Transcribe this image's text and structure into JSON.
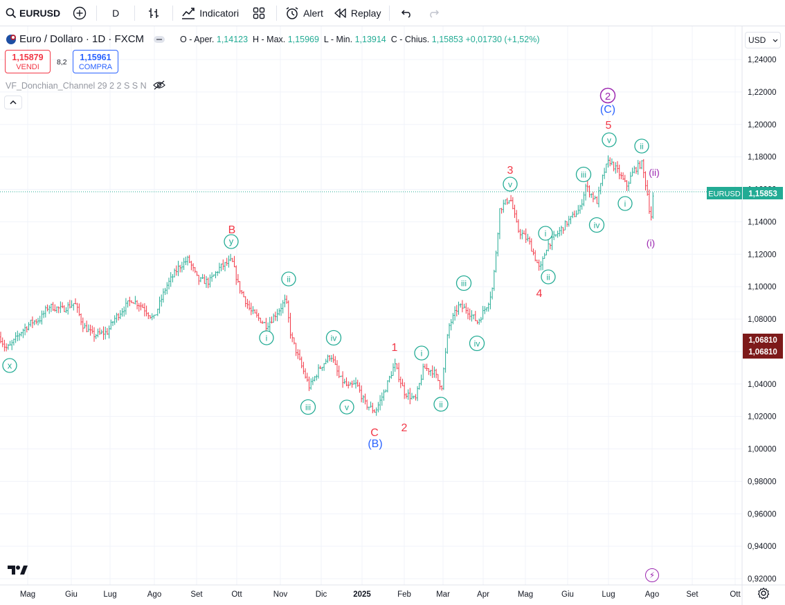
{
  "toolbar": {
    "symbol": "EURUSD",
    "timeframe": "D",
    "indicators_label": "Indicatori",
    "alert_label": "Alert",
    "replay_label": "Replay"
  },
  "legend": {
    "title": "Euro / Dollaro · 1D · FXCM",
    "open_label": "O - Aper.",
    "open": "1,14123",
    "high_label": "H - Max.",
    "high": "1,15969",
    "low_label": "L - Min.",
    "low": "1,13914",
    "close_label": "C - Chius.",
    "close": "1,15853",
    "change": "+0,01730 (+1,52%)"
  },
  "trade": {
    "sell_price": "1,15879",
    "sell_label": "VENDI",
    "spread": "8,2",
    "buy_price": "1,15961",
    "buy_label": "COMPRA"
  },
  "indicator": {
    "label": "VF_Donchian_Channel 29 2 2 S S N"
  },
  "currency": "USD",
  "price_axis": {
    "ticks": [
      "1,24000",
      "1,22000",
      "1,20000",
      "1,18000",
      "1,16000",
      "1,14000",
      "1,12000",
      "1,10000",
      "1,08000",
      "1,06000",
      "1,04000",
      "1,02000",
      "1,00000",
      "0,98000",
      "0,96000",
      "0,94000",
      "0,92000"
    ],
    "last_label": "EURUSD",
    "last_value": "1,15853",
    "crosshair_1": "1,06810",
    "crosshair_2": "1,06810"
  },
  "time_axis": [
    "Mag",
    "Giu",
    "Lug",
    "Ago",
    "Set",
    "Ott",
    "Nov",
    "Dic",
    "2025",
    "Feb",
    "Mar",
    "Apr",
    "Mag",
    "Giu",
    "Lug",
    "Ago",
    "Set",
    "Ott"
  ],
  "colors": {
    "up": "#22ab94",
    "down": "#f23645",
    "purple": "#9c27b0",
    "blue": "#2962ff",
    "wave": "#22ab94",
    "red_label": "#f23645"
  },
  "wave_labels": {
    "x": "x",
    "y": "y",
    "B": "B",
    "i1": "i",
    "ii1": "ii",
    "iii1": "iii",
    "iv1": "iv",
    "v1": "v",
    "C": "C",
    "Bp": "(B)",
    "one": "1",
    "two": "2",
    "i2": "i",
    "ii2": "ii",
    "iii2": "iii",
    "iv2": "iv",
    "v2": "v",
    "three": "3",
    "four": "4",
    "i3": "i",
    "ii3": "ii",
    "iii3": "iii",
    "iv3": "iv",
    "v3": "v",
    "five": "5",
    "circ2": "2",
    "Cp": "(C)",
    "i4": "i",
    "ii4": "ii",
    "iip": "(ii)",
    "ip": "(i)"
  },
  "chart_data": {
    "type": "ohlc",
    "title": "Euro / Dollaro · 1D · FXCM",
    "ylim": [
      0.915,
      1.245
    ],
    "closes_weekly_approx": [
      1.065,
      1.07,
      1.082,
      1.085,
      1.088,
      1.082,
      1.072,
      1.07,
      1.078,
      1.085,
      1.093,
      1.08,
      1.095,
      1.112,
      1.118,
      1.105,
      1.11,
      1.108,
      1.115,
      1.1,
      1.09,
      1.08,
      1.085,
      1.075,
      1.06,
      1.05,
      1.055,
      1.04,
      1.048,
      1.04,
      1.038,
      1.03,
      1.03,
      1.045,
      1.04,
      1.035,
      1.045,
      1.05,
      1.042,
      1.085,
      1.09,
      1.082,
      1.095,
      1.135,
      1.138,
      1.13,
      1.128,
      1.118,
      1.13,
      1.14,
      1.145,
      1.155,
      1.17,
      1.175,
      1.165,
      1.16,
      1.17,
      1.145,
      1.158
    ]
  }
}
